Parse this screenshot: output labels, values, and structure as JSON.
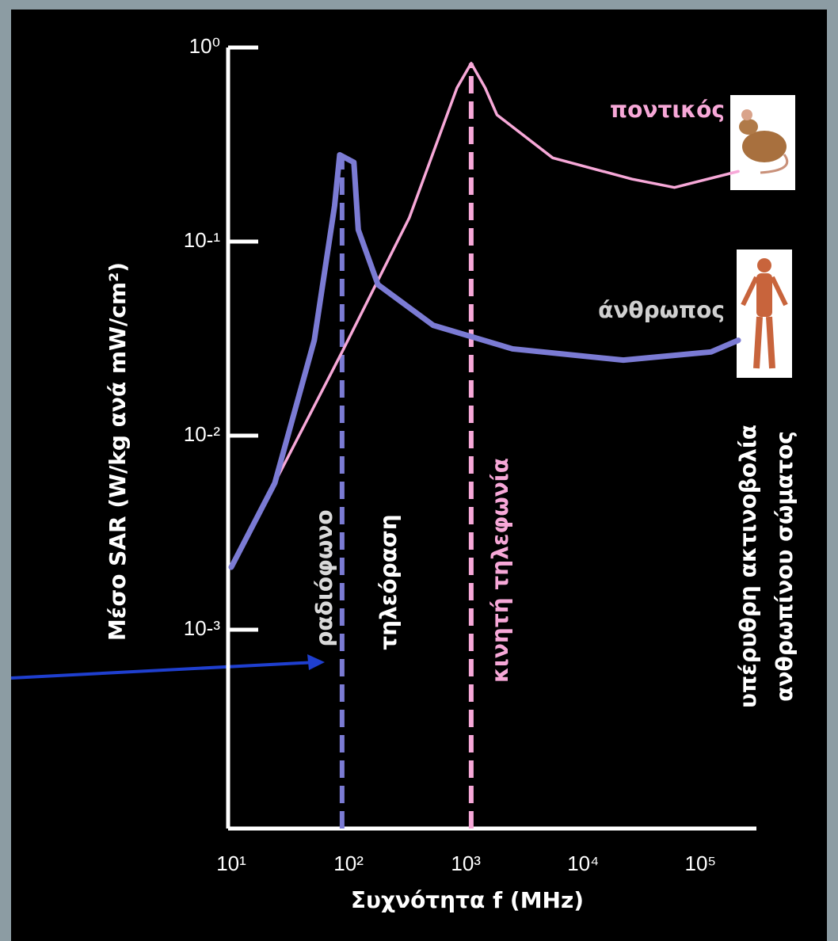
{
  "chart_data": {
    "type": "line",
    "x_label": "Συχνότητα f (MHz)",
    "y_label": "Μέσο SAR (W/kg ανά mW/cm²)",
    "xlog": true,
    "ylog": true,
    "xlim": [
      10,
      300000
    ],
    "ylim": [
      0.0001,
      1
    ],
    "xticks": [
      {
        "value": 10,
        "label": "10¹"
      },
      {
        "value": 100,
        "label": "10²"
      },
      {
        "value": 1000,
        "label": "10³"
      },
      {
        "value": 10000,
        "label": "10⁴"
      },
      {
        "value": 100000,
        "label": "10⁵"
      }
    ],
    "yticks": [
      {
        "value": 1,
        "label": "10⁰"
      },
      {
        "value": 0.1,
        "label": "10-¹"
      },
      {
        "value": 0.01,
        "label": "10-²"
      },
      {
        "value": 0.001,
        "label": "10-³"
      }
    ],
    "series": [
      {
        "name": "ποντικός",
        "color": "#f7a8d8",
        "x": [
          10,
          88,
          330,
          840,
          1110,
          1460,
          1840,
          5500,
          26000,
          60000,
          210000
        ],
        "values": [
          0.0021,
          0.027,
          0.133,
          0.62,
          0.83,
          0.62,
          0.45,
          0.27,
          0.21,
          0.19,
          0.23
        ]
      },
      {
        "name": "άνθρωπος",
        "color": "#7b7bd4",
        "x": [
          10,
          23.5,
          51,
          76,
          84,
          111,
          121,
          178,
          528,
          2500,
          22000,
          123000,
          210000
        ],
        "values": [
          0.0021,
          0.0057,
          0.031,
          0.153,
          0.28,
          0.256,
          0.115,
          0.06,
          0.037,
          0.028,
          0.0245,
          0.027,
          0.031
        ]
      }
    ],
    "vlines": [
      {
        "x": 88,
        "color": "#7b7bd4"
      },
      {
        "x": 1110,
        "color": "#f7a8d8"
      }
    ],
    "band_labels": [
      {
        "text": "ραδιόφωνο",
        "color": "#d9d9d9"
      },
      {
        "text": "τηλεόραση",
        "color": "#ffffff"
      },
      {
        "text": "κινητή τηλεφωνία",
        "color": "#f7a8d8"
      },
      {
        "text": "υπέρυθρη ακτινοβολία",
        "color": "#ffffff"
      },
      {
        "text": "ανθρωπίνου σώματος",
        "color": "#ffffff"
      }
    ]
  }
}
